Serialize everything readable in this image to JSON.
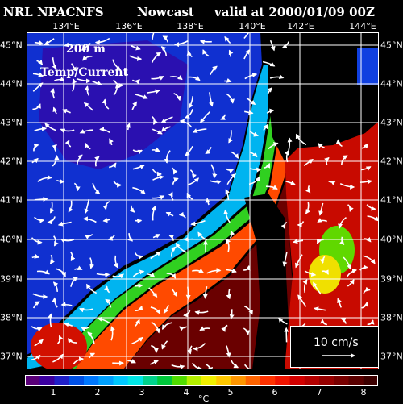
{
  "header": {
    "agency": "NRL NPACNFS",
    "product": "Nowcast",
    "valid": "valid at 2000/01/09 00Z"
  },
  "map": {
    "depth_label": "200 m",
    "field_label": "Temp/Current",
    "lon_labels": [
      "134°E",
      "136°E",
      "138°E",
      "140°E",
      "142°E",
      "144°E"
    ],
    "lat_labels": [
      "45°N",
      "44°N",
      "43°N",
      "42°N",
      "41°N",
      "40°N",
      "39°N",
      "38°N",
      "37°N"
    ],
    "land_color": "#000000",
    "grid_color": "#ffffff"
  },
  "scale_vector": {
    "label": "10 cm/s"
  },
  "colorbar": {
    "ticks": [
      "1",
      "2",
      "3",
      "4",
      "5",
      "6",
      "7",
      "8"
    ],
    "unit": "°C",
    "colors": [
      "#5a0078",
      "#3c00a0",
      "#2020c8",
      "#0050e6",
      "#0078ff",
      "#00a0ff",
      "#00c8ff",
      "#00e6e6",
      "#00d28c",
      "#00c83c",
      "#50dc00",
      "#b4f000",
      "#f0f000",
      "#ffc800",
      "#ff9600",
      "#ff6400",
      "#ff3200",
      "#f01400",
      "#d20000",
      "#b40000",
      "#960000",
      "#780000",
      "#5a0000",
      "#3c0000"
    ]
  }
}
